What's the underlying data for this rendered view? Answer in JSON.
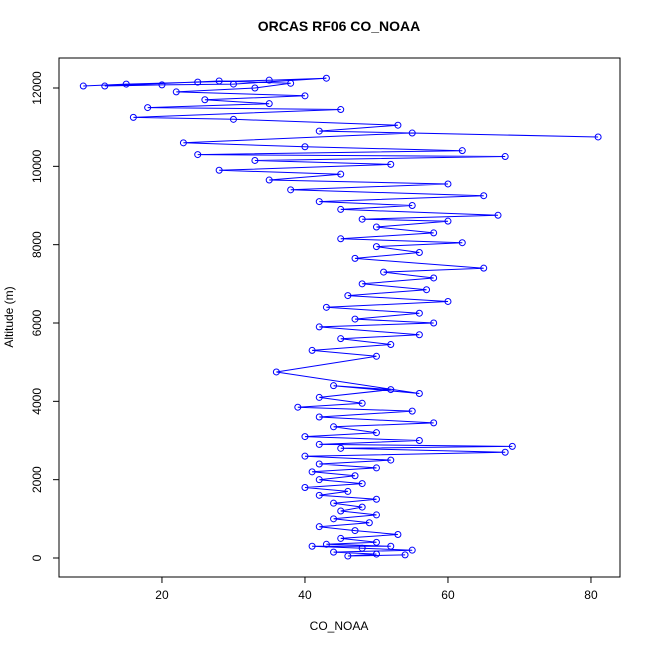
{
  "chart_data": {
    "type": "scatter",
    "title": "ORCAS RF06 CO_NOAA",
    "x_label": "CO_NOAA",
    "y_label": "Altitude (m)",
    "color": "#0000ff",
    "x": [
      9,
      15,
      25,
      35,
      43,
      30,
      20,
      12,
      28,
      38,
      33,
      22,
      40,
      26,
      35,
      18,
      45,
      16,
      30,
      53,
      42,
      81,
      55,
      23,
      40,
      62,
      25,
      68,
      33,
      52,
      28,
      45,
      35,
      60,
      38,
      65,
      42,
      55,
      45,
      67,
      48,
      60,
      50,
      58,
      45,
      62,
      50,
      56,
      47,
      65,
      51,
      58,
      48,
      57,
      46,
      60,
      43,
      56,
      47,
      58,
      42,
      56,
      45,
      52,
      41,
      50,
      36,
      56,
      44,
      52,
      42,
      48,
      39,
      55,
      42,
      58,
      44,
      50,
      40,
      56,
      42,
      69,
      45,
      68,
      40,
      52,
      42,
      50,
      41,
      47,
      42,
      48,
      40,
      46,
      42,
      50,
      44,
      48,
      45,
      50,
      44,
      49,
      42,
      47,
      53,
      45,
      50,
      43,
      52,
      41,
      48,
      55,
      44,
      50,
      46,
      54
    ],
    "values": [
      12050,
      12100,
      12150,
      12200,
      12250,
      12100,
      12080,
      12050,
      12180,
      12120,
      12000,
      11900,
      11800,
      11700,
      11600,
      11500,
      11450,
      11250,
      11200,
      11050,
      10900,
      10750,
      10850,
      10600,
      10500,
      10400,
      10300,
      10250,
      10150,
      10050,
      9900,
      9800,
      9650,
      9550,
      9400,
      9250,
      9100,
      9000,
      8900,
      8750,
      8650,
      8600,
      8450,
      8300,
      8150,
      8050,
      7950,
      7800,
      7650,
      7400,
      7300,
      7150,
      7000,
      6850,
      6700,
      6550,
      6400,
      6250,
      6100,
      6000,
      5900,
      5700,
      5600,
      5450,
      5300,
      5150,
      4750,
      4200,
      4400,
      4300,
      4100,
      3950,
      3850,
      3750,
      3600,
      3450,
      3350,
      3200,
      3100,
      3000,
      2900,
      2850,
      2800,
      2700,
      2600,
      2500,
      2400,
      2300,
      2200,
      2100,
      2000,
      1900,
      1800,
      1700,
      1600,
      1500,
      1400,
      1300,
      1200,
      1100,
      1000,
      900,
      800,
      700,
      600,
      500,
      400,
      350,
      300,
      300,
      250,
      200,
      150,
      100,
      50,
      80
    ],
    "xlim": [
      5.6,
      84.06
    ],
    "ylim": [
      -485,
      12766
    ],
    "xticks": [
      20,
      40,
      60,
      80
    ],
    "yticks": [
      0,
      2000,
      4000,
      6000,
      8000,
      10000,
      12000
    ]
  }
}
